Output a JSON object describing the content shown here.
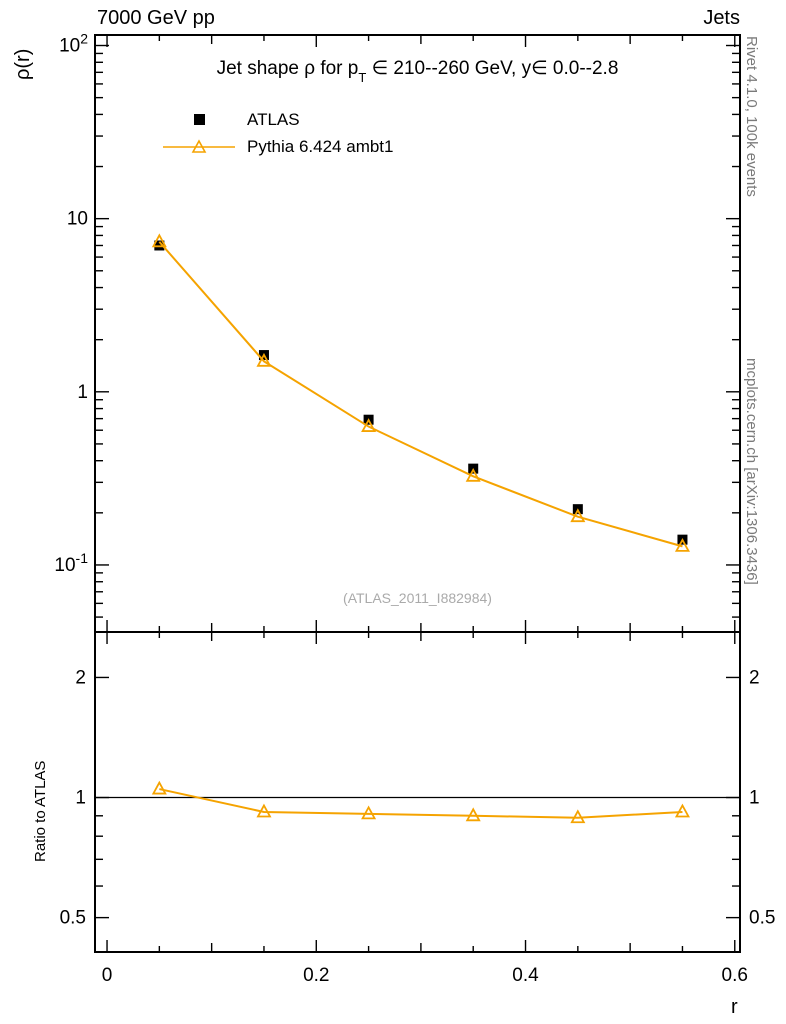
{
  "header": {
    "left": "7000 GeV pp",
    "right": "Jets"
  },
  "side_labels": {
    "top": "Rivet 4.1.0,  100k events",
    "bottom": "mcplots.cern.ch [arXiv:1306.3436]"
  },
  "watermark": "(ATLAS_2011_I882984)",
  "chart_data": {
    "type": "line",
    "title": "Jet shape ρ for pT ∈ 210--260 GeV, y∈ 0.0--2.8",
    "title_parts": [
      "Jet shape ρ for p",
      "T",
      " ∈ 210--260 GeV, y∈ 0.0--2.8"
    ],
    "xlabel": "r",
    "ylabel": "ρ(r)",
    "ratio_ylabel": "Ratio to ATLAS",
    "yscale": "log",
    "x": [
      0.05,
      0.15,
      0.25,
      0.35,
      0.45,
      0.55
    ],
    "series": [
      {
        "name": "ATLAS",
        "marker": "filled-square",
        "color": "#000000",
        "values": [
          7.0,
          1.63,
          0.69,
          0.36,
          0.21,
          0.14
        ]
      },
      {
        "name": "Pythia 6.424 ambt1",
        "marker": "open-triangle",
        "color": "#f5a300",
        "values": [
          7.35,
          1.5,
          0.63,
          0.325,
          0.19,
          0.128
        ]
      }
    ],
    "xlim": [
      -0.0115,
      0.605
    ],
    "ylim": [
      0.041,
      115
    ],
    "xticks": [
      0,
      0.2,
      0.4,
      0.6
    ],
    "yticks": [
      0.1,
      1,
      10,
      100
    ],
    "ratio": {
      "yscale": "log",
      "series": [
        {
          "name": "Pythia 6.424 ambt1",
          "values": [
            1.05,
            0.92,
            0.91,
            0.9,
            0.89,
            0.92
          ]
        }
      ],
      "ylim": [
        0.41,
        2.6
      ],
      "yticks": [
        0.5,
        1,
        2
      ],
      "reference_line": 1
    }
  }
}
